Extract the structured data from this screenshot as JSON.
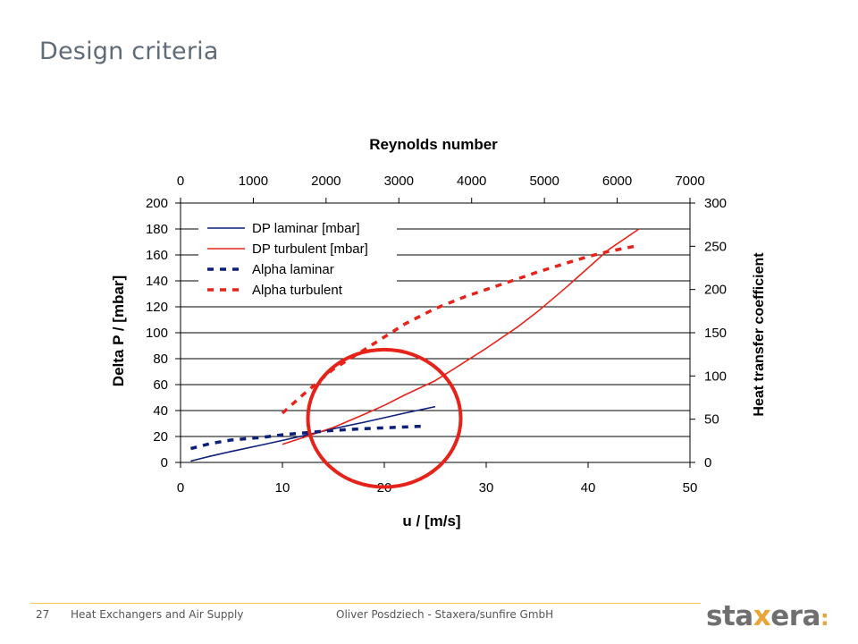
{
  "slide": {
    "title": "Design criteria"
  },
  "footer": {
    "page_number": "27",
    "section": "Heat Exchangers and Air Supply",
    "author": "Oliver Posdziech - Staxera/sunfire GmbH",
    "logo": {
      "prefix": "sta",
      "x": "x",
      "suffix": "era",
      "colon": ":"
    }
  },
  "colors": {
    "laminar": "#0c1f7a",
    "turbulent": "#e5231b",
    "highlight_circle": "#e5231b",
    "grid": "#000000",
    "footer_rule": "#f0c84b",
    "logo_accent": "#e9a43a"
  },
  "chart_data": {
    "type": "line",
    "title": "Reynolds number",
    "xlabel": "u / [m/s]",
    "ylabel": "Delta P / [mbar]",
    "y2label": "Heat transfer coefficient",
    "xlim": [
      0,
      50
    ],
    "ylim": [
      0,
      200
    ],
    "y2lim": [
      0,
      300
    ],
    "x2lim": [
      0,
      7000
    ],
    "xticks": [
      0,
      10,
      20,
      30,
      40,
      50
    ],
    "yticks": [
      0,
      20,
      40,
      60,
      80,
      100,
      120,
      140,
      160,
      180,
      200
    ],
    "y2ticks": [
      0,
      50,
      100,
      150,
      200,
      250,
      300
    ],
    "x2ticks": [
      0,
      1000,
      2000,
      3000,
      4000,
      5000,
      6000,
      7000
    ],
    "grid": "horizontal",
    "legend_position": "top-left",
    "series": [
      {
        "name": "DP laminar [mbar]",
        "axis": "left",
        "style": "solid",
        "x": [
          1,
          2,
          3,
          5,
          8,
          10,
          12,
          15,
          18,
          20,
          22,
          25
        ],
        "y": [
          1,
          3,
          5,
          8.5,
          13.5,
          17,
          20.5,
          26,
          31,
          34.5,
          38,
          43
        ]
      },
      {
        "name": "DP turbulent [mbar]",
        "axis": "left",
        "style": "solid",
        "x": [
          10,
          12,
          15,
          18,
          20,
          22,
          25,
          28,
          30,
          33,
          35,
          38,
          40,
          42,
          45
        ],
        "y": [
          14,
          19,
          27,
          37,
          44,
          52,
          63,
          78,
          88,
          104,
          116,
          136,
          150,
          164,
          180
        ]
      },
      {
        "name": "Alpha laminar",
        "axis": "right",
        "style": "dashed",
        "x": [
          1,
          3,
          5,
          8,
          10,
          12,
          15,
          18,
          20,
          22,
          24
        ],
        "y": [
          16,
          22,
          26,
          29,
          32,
          34,
          37,
          39,
          40,
          41,
          42
        ]
      },
      {
        "name": "Alpha turbulent",
        "axis": "right",
        "style": "dashed",
        "x": [
          10,
          12,
          15,
          18,
          20,
          22,
          25,
          28,
          30,
          33,
          35,
          38,
          40,
          42,
          45
        ],
        "y": [
          57,
          78,
          108,
          130,
          145,
          160,
          178,
          192,
          200,
          212,
          220,
          231,
          238,
          244,
          251
        ]
      }
    ],
    "annotation": {
      "type": "circle",
      "center": [
        20,
        34
      ],
      "rx_units": 7.5,
      "ry_units": 53
    }
  }
}
